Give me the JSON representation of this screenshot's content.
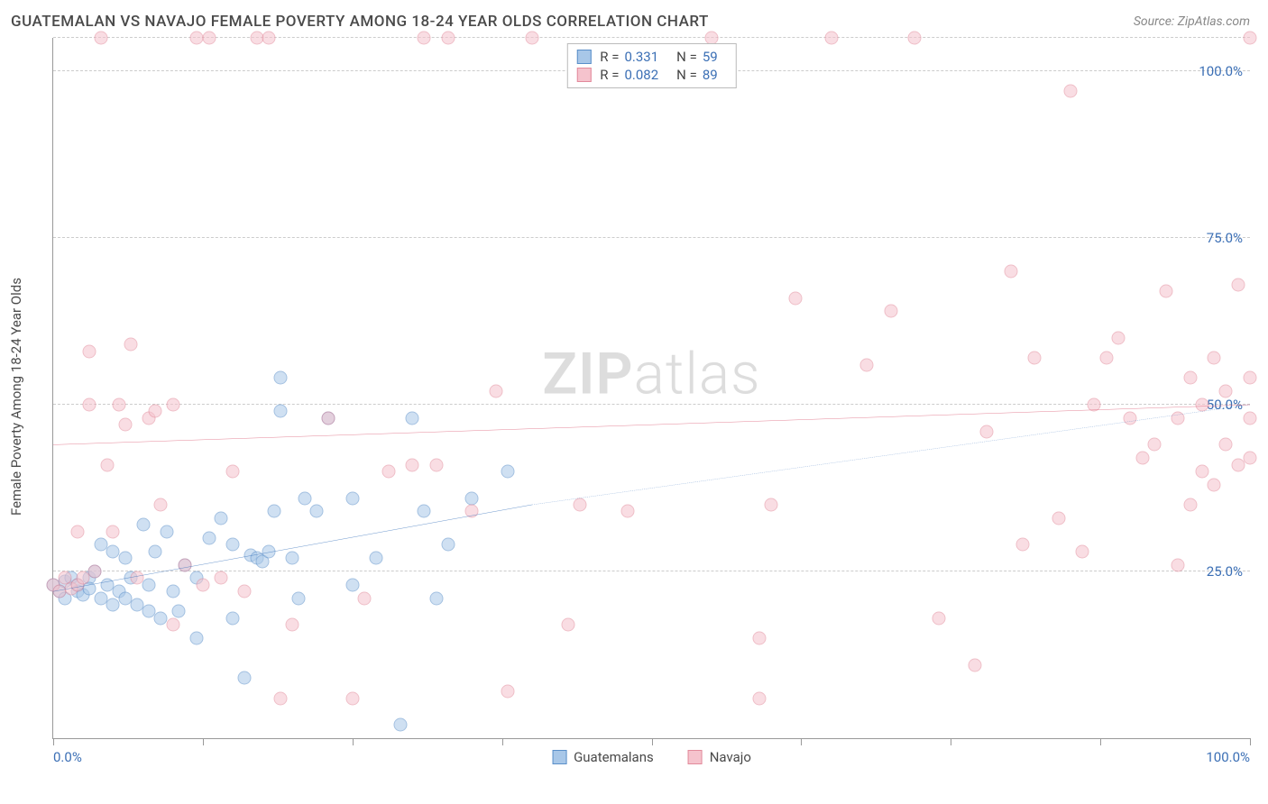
{
  "title": "GUATEMALAN VS NAVAJO FEMALE POVERTY AMONG 18-24 YEAR OLDS CORRELATION CHART",
  "source": "Source: ZipAtlas.com",
  "y_axis_label": "Female Poverty Among 18-24 Year Olds",
  "watermark_bold": "ZIP",
  "watermark_light": "atlas",
  "chart": {
    "type": "scatter",
    "xlim": [
      0,
      100
    ],
    "ylim": [
      0,
      105
    ],
    "x_ticks": [
      0,
      12.5,
      25,
      37.5,
      50,
      62.5,
      75,
      87.5,
      100
    ],
    "x_tick_labels": {
      "0": "0.0%",
      "100": "100.0%"
    },
    "y_gridlines": [
      25,
      50,
      75,
      100,
      105
    ],
    "y_tick_labels": {
      "25": "25.0%",
      "50": "50.0%",
      "75": "75.0%",
      "100": "100.0%"
    },
    "background_color": "#ffffff",
    "grid_color": "#cccccc",
    "axis_color": "#999999",
    "marker_size": 15,
    "marker_opacity": 0.55,
    "marker_border_width": 1.5
  },
  "series": [
    {
      "name": "Guatemalans",
      "fill_color": "#a8c7e8",
      "border_color": "#5a8fc9",
      "line_color": "#2e6bb8",
      "R": "0.331",
      "N": "59",
      "trend": {
        "x1": 0,
        "y1": 22,
        "x2": 40,
        "y2": 35,
        "x2_ext": 100,
        "y2_ext": 50,
        "solid_end": 40
      },
      "points": [
        [
          0,
          23
        ],
        [
          0.5,
          22
        ],
        [
          1,
          23.5
        ],
        [
          1,
          21
        ],
        [
          1.5,
          24
        ],
        [
          2,
          22
        ],
        [
          2,
          23
        ],
        [
          2.5,
          21.5
        ],
        [
          3,
          24
        ],
        [
          3,
          22.5
        ],
        [
          3.5,
          25
        ],
        [
          4,
          21
        ],
        [
          4,
          29
        ],
        [
          4.5,
          23
        ],
        [
          5,
          28
        ],
        [
          5,
          20
        ],
        [
          5.5,
          22
        ],
        [
          6,
          27
        ],
        [
          6,
          21
        ],
        [
          6.5,
          24
        ],
        [
          7,
          20
        ],
        [
          7.5,
          32
        ],
        [
          8,
          19
        ],
        [
          8,
          23
        ],
        [
          8.5,
          28
        ],
        [
          9,
          18
        ],
        [
          9.5,
          31
        ],
        [
          10,
          22
        ],
        [
          10.5,
          19
        ],
        [
          11,
          26
        ],
        [
          12,
          15
        ],
        [
          12,
          24
        ],
        [
          13,
          30
        ],
        [
          14,
          33
        ],
        [
          15,
          18
        ],
        [
          15,
          29
        ],
        [
          16,
          9
        ],
        [
          16.5,
          27.5
        ],
        [
          17,
          27
        ],
        [
          17.5,
          26.5
        ],
        [
          18,
          28
        ],
        [
          18.5,
          34
        ],
        [
          19,
          54
        ],
        [
          19,
          49
        ],
        [
          20,
          27
        ],
        [
          20.5,
          21
        ],
        [
          21,
          36
        ],
        [
          22,
          34
        ],
        [
          23,
          48
        ],
        [
          25,
          36
        ],
        [
          25,
          23
        ],
        [
          27,
          27
        ],
        [
          29,
          2
        ],
        [
          30,
          48
        ],
        [
          31,
          34
        ],
        [
          32,
          21
        ],
        [
          33,
          29
        ],
        [
          35,
          36
        ],
        [
          38,
          40
        ]
      ]
    },
    {
      "name": "Navajo",
      "fill_color": "#f5c3cd",
      "border_color": "#e28a9b",
      "line_color": "#d8516b",
      "R": "0.082",
      "N": "89",
      "trend": {
        "x1": 0,
        "y1": 44,
        "x2": 100,
        "y2": 50,
        "solid_end": 100
      },
      "points": [
        [
          0,
          23
        ],
        [
          0.5,
          22
        ],
        [
          1,
          24
        ],
        [
          1.5,
          22.5
        ],
        [
          2,
          23
        ],
        [
          2,
          31
        ],
        [
          2.5,
          24
        ],
        [
          3,
          58
        ],
        [
          3,
          50
        ],
        [
          3.5,
          25
        ],
        [
          4,
          105
        ],
        [
          4.5,
          41
        ],
        [
          5,
          31
        ],
        [
          5.5,
          50
        ],
        [
          6,
          47
        ],
        [
          6.5,
          59
        ],
        [
          7,
          24
        ],
        [
          8,
          48
        ],
        [
          8.5,
          49
        ],
        [
          9,
          35
        ],
        [
          10,
          50
        ],
        [
          10,
          17
        ],
        [
          11,
          26
        ],
        [
          12,
          105
        ],
        [
          12.5,
          23
        ],
        [
          13,
          105
        ],
        [
          14,
          24
        ],
        [
          15,
          40
        ],
        [
          16,
          22
        ],
        [
          17,
          105
        ],
        [
          18,
          105
        ],
        [
          19,
          6
        ],
        [
          20,
          17
        ],
        [
          23,
          48
        ],
        [
          25,
          6
        ],
        [
          26,
          21
        ],
        [
          28,
          40
        ],
        [
          30,
          41
        ],
        [
          31,
          105
        ],
        [
          32,
          41
        ],
        [
          33,
          105
        ],
        [
          35,
          34
        ],
        [
          37,
          52
        ],
        [
          38,
          7
        ],
        [
          40,
          105
        ],
        [
          43,
          17
        ],
        [
          44,
          35
        ],
        [
          48,
          34
        ],
        [
          55,
          105
        ],
        [
          59,
          6
        ],
        [
          59,
          15
        ],
        [
          60,
          35
        ],
        [
          62,
          66
        ],
        [
          65,
          105
        ],
        [
          68,
          56
        ],
        [
          70,
          64
        ],
        [
          72,
          105
        ],
        [
          74,
          18
        ],
        [
          77,
          11
        ],
        [
          78,
          46
        ],
        [
          80,
          70
        ],
        [
          81,
          29
        ],
        [
          82,
          57
        ],
        [
          84,
          33
        ],
        [
          85,
          97
        ],
        [
          86,
          28
        ],
        [
          87,
          50
        ],
        [
          88,
          57
        ],
        [
          89,
          60
        ],
        [
          90,
          48
        ],
        [
          91,
          42
        ],
        [
          92,
          44
        ],
        [
          93,
          67
        ],
        [
          94,
          26
        ],
        [
          94,
          48
        ],
        [
          95,
          35
        ],
        [
          95,
          54
        ],
        [
          96,
          50
        ],
        [
          96,
          40
        ],
        [
          97,
          38
        ],
        [
          97,
          57
        ],
        [
          98,
          44
        ],
        [
          98,
          52
        ],
        [
          99,
          41
        ],
        [
          99,
          68
        ],
        [
          100,
          48
        ],
        [
          100,
          54
        ],
        [
          100,
          42
        ],
        [
          100,
          105
        ]
      ]
    }
  ],
  "legend_bottom": [
    {
      "label": "Guatemalans",
      "swatch_fill": "#a8c7e8",
      "swatch_border": "#5a8fc9"
    },
    {
      "label": "Navajo",
      "swatch_fill": "#f5c3cd",
      "swatch_border": "#e28a9b"
    }
  ]
}
